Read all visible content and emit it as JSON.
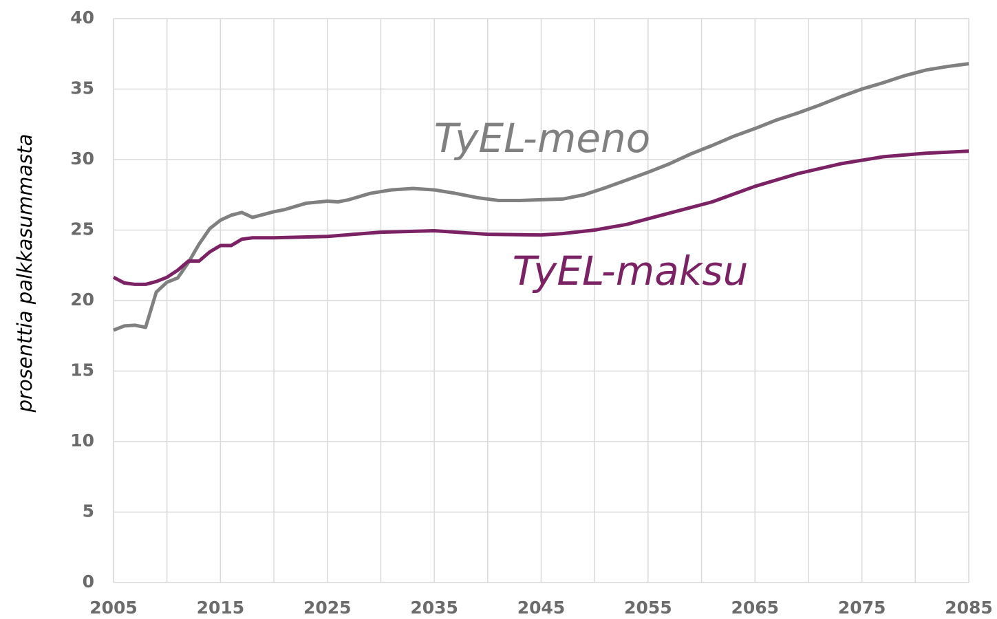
{
  "chart_data": {
    "type": "line",
    "y_label": "prosenttia palkkasummasta",
    "xlim": [
      2005,
      2085
    ],
    "xticks": [
      2005,
      2015,
      2025,
      2035,
      2045,
      2055,
      2065,
      2075,
      2085
    ],
    "xgrid": [
      2005,
      2010,
      2015,
      2020,
      2025,
      2030,
      2035,
      2040,
      2045,
      2050,
      2055,
      2060,
      2065,
      2070,
      2075,
      2080,
      2085
    ],
    "ylim": [
      0,
      40
    ],
    "yticks": [
      0,
      5,
      10,
      15,
      20,
      25,
      30,
      35,
      40
    ],
    "grid": true,
    "series": [
      {
        "name": "TyEL-meno",
        "color": "#808080",
        "x": [
          2005,
          2006,
          2007,
          2008,
          2009,
          2010,
          2011,
          2012,
          2013,
          2014,
          2015,
          2016,
          2017,
          2018,
          2019,
          2020,
          2021,
          2023,
          2025,
          2026,
          2027,
          2029,
          2031,
          2033,
          2035,
          2037,
          2039,
          2041,
          2043,
          2045,
          2047,
          2049,
          2051,
          2053,
          2055,
          2057,
          2059,
          2061,
          2063,
          2065,
          2067,
          2069,
          2071,
          2073,
          2075,
          2077,
          2079,
          2081,
          2083,
          2085
        ],
        "values": [
          17.9,
          18.2,
          18.25,
          18.1,
          20.6,
          21.3,
          21.6,
          22.7,
          24.0,
          25.1,
          25.7,
          26.05,
          26.25,
          25.9,
          26.1,
          26.3,
          26.45,
          26.9,
          27.05,
          27.0,
          27.15,
          27.6,
          27.85,
          27.95,
          27.85,
          27.6,
          27.3,
          27.1,
          27.1,
          27.15,
          27.2,
          27.5,
          28.0,
          28.55,
          29.1,
          29.7,
          30.4,
          31.0,
          31.65,
          32.2,
          32.8,
          33.3,
          33.85,
          34.45,
          35.0,
          35.45,
          35.95,
          36.35,
          36.6,
          36.8
        ]
      },
      {
        "name": "TyEL-maksu",
        "color": "#7b2264",
        "x": [
          2005,
          2006,
          2007,
          2008,
          2009,
          2010,
          2011,
          2012,
          2013,
          2014,
          2015,
          2016,
          2017,
          2018,
          2020,
          2025,
          2030,
          2035,
          2040,
          2045,
          2047,
          2050,
          2053,
          2055,
          2059,
          2061,
          2065,
          2069,
          2073,
          2077,
          2081,
          2085
        ],
        "values": [
          21.65,
          21.25,
          21.15,
          21.15,
          21.35,
          21.65,
          22.15,
          22.8,
          22.8,
          23.45,
          23.9,
          23.9,
          24.35,
          24.45,
          24.45,
          24.55,
          24.85,
          24.95,
          24.7,
          24.65,
          24.75,
          25.0,
          25.4,
          25.8,
          26.6,
          27.0,
          28.1,
          29.0,
          29.7,
          30.2,
          30.45,
          30.6
        ]
      }
    ]
  }
}
